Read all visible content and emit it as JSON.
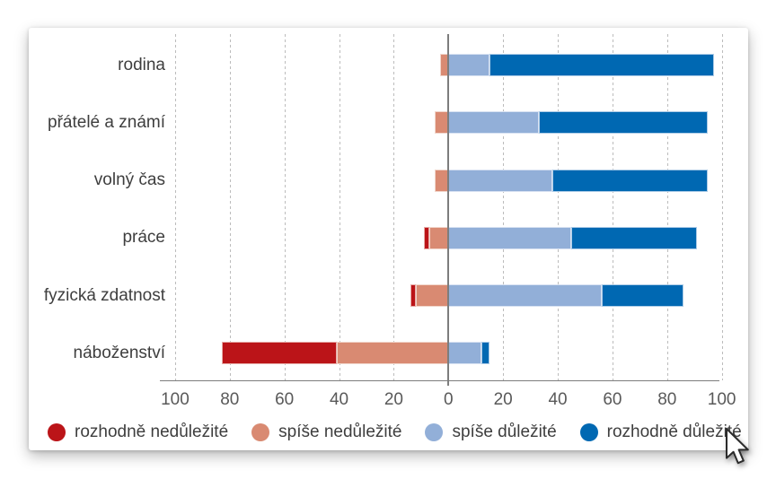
{
  "chart_data": {
    "type": "bar",
    "variant": "horizontal-diverging-stacked",
    "title": "",
    "categories": [
      "rodina",
      "přátelé a známí",
      "volný čas",
      "práce",
      "fyzická zdatnost",
      "náboženství"
    ],
    "series": [
      {
        "name": "rozhodně nedůležité",
        "side": "negative",
        "color": "#bb1418",
        "border_color": "#e6aba7",
        "values": [
          0,
          0,
          0,
          2,
          2,
          42
        ]
      },
      {
        "name": "spíše nedůležité",
        "side": "negative",
        "color": "#d98a72",
        "border_color": "#f1d6cb",
        "values": [
          3,
          5,
          5,
          7,
          12,
          41
        ]
      },
      {
        "name": "spíše důležité",
        "side": "positive",
        "color": "#92afd8",
        "border_color": "#d8e2f2",
        "values": [
          15,
          33,
          38,
          45,
          56,
          12
        ]
      },
      {
        "name": "rozhodně důležité",
        "side": "positive",
        "color": "#0068b2",
        "border_color": "#aecce7",
        "values": [
          82,
          62,
          57,
          46,
          30,
          3
        ]
      }
    ],
    "xlim": [
      -100,
      100
    ],
    "axis_ticks": [
      -100,
      -80,
      -60,
      -40,
      -20,
      0,
      20,
      40,
      60,
      80,
      100
    ],
    "axis_tick_labels": [
      "100",
      "80",
      "60",
      "40",
      "20",
      "0",
      "20",
      "40",
      "60",
      "80",
      "100"
    ],
    "grid": "dashed-vertical-on",
    "legend_position": "bottom",
    "unit": "%"
  },
  "colors": {
    "axis": "#7d7d7d",
    "grid": "#bcbcbc",
    "tick_text": "#595959",
    "category_text": "#3e3e3e",
    "card_background": "#ffffff"
  },
  "cursor": {
    "type": "arrow-pointer"
  }
}
